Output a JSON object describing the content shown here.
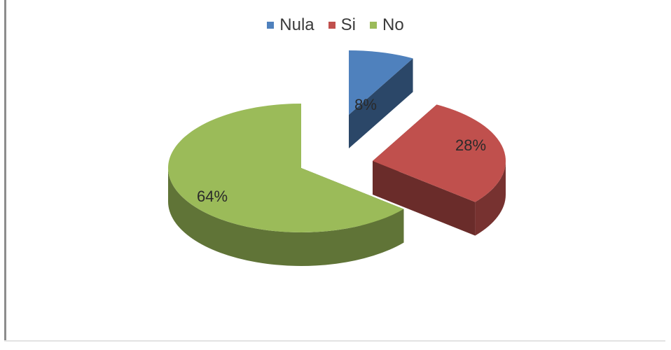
{
  "chart_data": {
    "type": "pie",
    "title": "",
    "style": "3d-exploded",
    "legend_position": "top",
    "slices": [
      {
        "name": "Nula",
        "value": 8,
        "label": "8%",
        "color": "#4f81bd"
      },
      {
        "name": "Si",
        "value": 28,
        "label": "28%",
        "color": "#c0504d"
      },
      {
        "name": "No",
        "value": 64,
        "label": "64%",
        "color": "#9bbb59"
      }
    ]
  }
}
